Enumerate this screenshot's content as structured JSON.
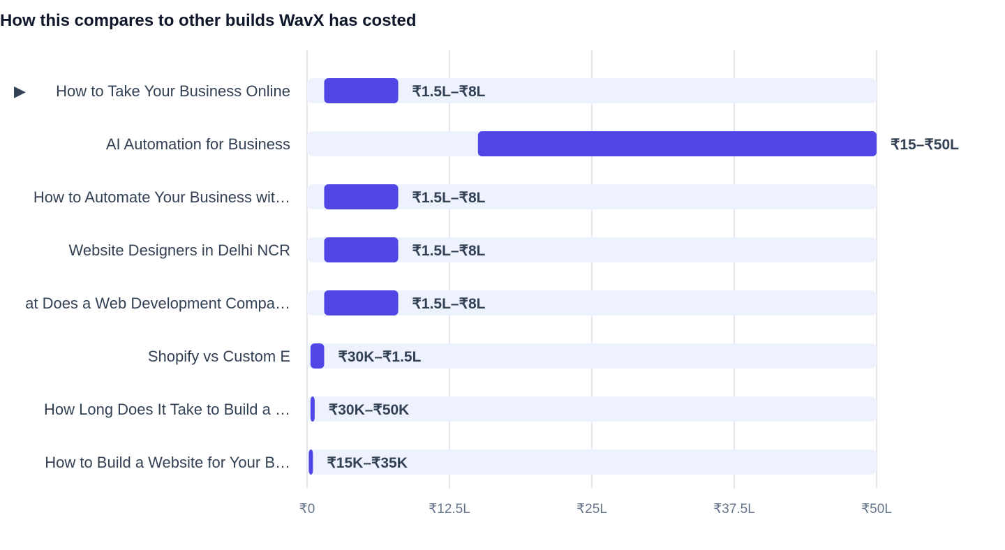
{
  "chart_data": {
    "type": "bar",
    "orientation": "horizontal",
    "range_bars": true,
    "title": "How this compares to other builds WavX has costed",
    "categories": [
      "How to Take Your Business Online",
      "AI Automation for Business",
      "How to Automate Your Business wit…",
      "Website Designers in Delhi NCR",
      "at Does a Web Development Compa…",
      "Shopify vs Custom E",
      "How Long Does It Take to Build a …",
      "How to Build a Website for Your B…"
    ],
    "selected_category": "How to Take Your Business Online",
    "selected_marker": "▶",
    "ranges": [
      {
        "low": 150000,
        "high": 800000,
        "label": "₹1.5L–₹8L"
      },
      {
        "low": 1500000,
        "high": 5000000,
        "label": "₹15–₹50L"
      },
      {
        "low": 150000,
        "high": 800000,
        "label": "₹1.5L–₹8L"
      },
      {
        "low": 150000,
        "high": 800000,
        "label": "₹1.5L–₹8L"
      },
      {
        "low": 150000,
        "high": 800000,
        "label": "₹1.5L–₹8L"
      },
      {
        "low": 30000,
        "high": 150000,
        "label": "₹30K–₹1.5L"
      },
      {
        "low": 30000,
        "high": 50000,
        "label": "₹30K–₹50K"
      },
      {
        "low": 15000,
        "high": 35000,
        "label": "₹15K–₹35K"
      }
    ],
    "xlim": [
      0,
      5000000
    ],
    "xticks": [
      {
        "value": 0,
        "label": "₹0"
      },
      {
        "value": 1250000,
        "label": "₹12.5L"
      },
      {
        "value": 2500000,
        "label": "₹25L"
      },
      {
        "value": 3750000,
        "label": "₹37.5L"
      },
      {
        "value": 5000000,
        "label": "₹50L"
      }
    ],
    "grid": true,
    "colors": {
      "bar": "#4f46e5",
      "track": "#eef2ff",
      "grid": "#e5e7eb",
      "category_text": "#334155",
      "tick_text": "#64748b"
    }
  }
}
